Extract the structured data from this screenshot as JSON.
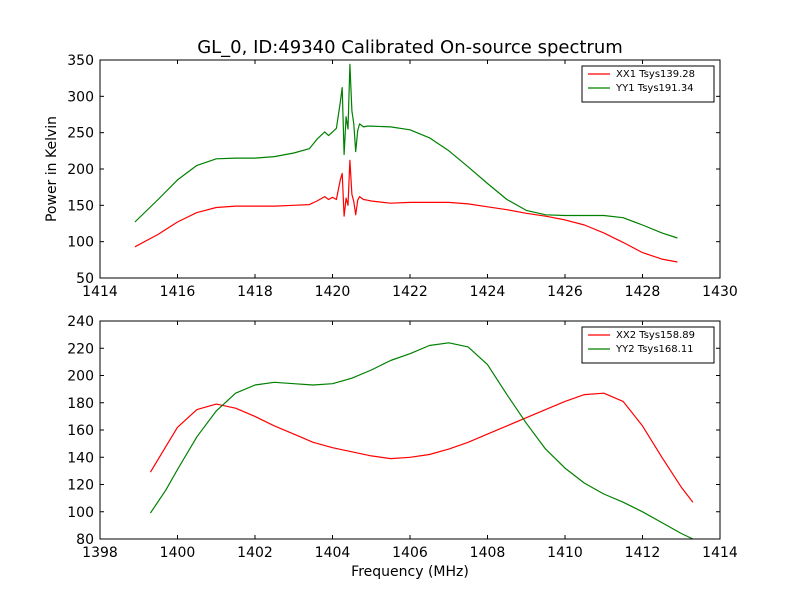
{
  "figure": {
    "title": "GL_0, ID:49340 Calibrated On-source spectrum",
    "background": "#ffffff"
  },
  "chart_data": [
    {
      "type": "line",
      "panel": "top",
      "xlim": [
        1414,
        1430
      ],
      "ylim": [
        50,
        350
      ],
      "xticks": [
        1414,
        1416,
        1418,
        1420,
        1422,
        1424,
        1426,
        1428,
        1430
      ],
      "yticks": [
        50,
        100,
        150,
        200,
        250,
        300,
        350
      ],
      "xlabel": "",
      "ylabel": "Power in Kelvin",
      "legend": "top-right",
      "grid": false,
      "series": [
        {
          "name": "XX1 Tsys139.28",
          "color": "#ff0000",
          "x": [
            1414.9,
            1415.5,
            1416.0,
            1416.5,
            1417.0,
            1417.5,
            1418.0,
            1418.5,
            1419.0,
            1419.4,
            1419.6,
            1419.8,
            1419.9,
            1420.0,
            1420.1,
            1420.2,
            1420.25,
            1420.3,
            1420.35,
            1420.4,
            1420.45,
            1420.5,
            1420.55,
            1420.6,
            1420.65,
            1420.7,
            1420.8,
            1420.9,
            1421.0,
            1421.5,
            1422.0,
            1422.5,
            1423.0,
            1423.5,
            1424.0,
            1424.5,
            1425.0,
            1425.5,
            1426.0,
            1426.5,
            1427.0,
            1427.5,
            1428.0,
            1428.5,
            1428.9
          ],
          "y": [
            93,
            110,
            127,
            140,
            147,
            149,
            149,
            149,
            150,
            151,
            156,
            162,
            158,
            161,
            158,
            185,
            194,
            135,
            160,
            150,
            212,
            165,
            155,
            137,
            157,
            162,
            158,
            157,
            156,
            153,
            154,
            154,
            154,
            152,
            148,
            144,
            139,
            135,
            130,
            123,
            112,
            99,
            85,
            76,
            72
          ]
        },
        {
          "name": "YY1 Tsys191.34",
          "color": "#008000",
          "x": [
            1414.9,
            1415.5,
            1416.0,
            1416.5,
            1417.0,
            1417.5,
            1418.0,
            1418.5,
            1419.0,
            1419.4,
            1419.6,
            1419.8,
            1419.9,
            1420.0,
            1420.1,
            1420.2,
            1420.25,
            1420.3,
            1420.35,
            1420.4,
            1420.45,
            1420.5,
            1420.55,
            1420.6,
            1420.65,
            1420.7,
            1420.8,
            1420.9,
            1421.0,
            1421.5,
            1422.0,
            1422.5,
            1423.0,
            1423.5,
            1424.0,
            1424.5,
            1425.0,
            1425.5,
            1426.0,
            1426.5,
            1427.0,
            1427.5,
            1428.0,
            1428.5,
            1428.9
          ],
          "y": [
            127,
            158,
            185,
            205,
            214,
            215,
            215,
            217,
            222,
            228,
            241,
            251,
            246,
            251,
            256,
            292,
            312,
            220,
            272,
            255,
            344,
            280,
            262,
            224,
            253,
            262,
            258,
            259,
            259,
            258,
            254,
            243,
            225,
            203,
            180,
            158,
            143,
            137,
            136,
            136,
            136,
            133,
            123,
            112,
            105
          ]
        }
      ]
    },
    {
      "type": "line",
      "panel": "bottom",
      "xlim": [
        1398,
        1414
      ],
      "ylim": [
        80,
        240
      ],
      "xticks": [
        1398,
        1400,
        1402,
        1404,
        1406,
        1408,
        1410,
        1412,
        1414
      ],
      "yticks": [
        80,
        100,
        120,
        140,
        160,
        180,
        200,
        220,
        240
      ],
      "xlabel": "Frequency (MHz)",
      "ylabel": "",
      "legend": "top-right",
      "grid": false,
      "series": [
        {
          "name": "XX2 Tsys158.89",
          "color": "#ff0000",
          "x": [
            1399.3,
            1399.7,
            1400.0,
            1400.5,
            1401.0,
            1401.5,
            1402.0,
            1402.5,
            1403.0,
            1403.5,
            1404.0,
            1404.5,
            1405.0,
            1405.5,
            1406.0,
            1406.5,
            1407.0,
            1407.5,
            1408.0,
            1408.5,
            1409.0,
            1409.5,
            1410.0,
            1410.5,
            1411.0,
            1411.5,
            1412.0,
            1412.5,
            1413.0,
            1413.3
          ],
          "y": [
            129,
            148,
            162,
            175,
            179,
            176,
            170,
            163,
            157,
            151,
            147,
            144,
            141,
            139,
            140,
            142,
            146,
            151,
            157,
            163,
            169,
            175,
            181,
            186,
            187,
            181,
            163,
            140,
            118,
            107
          ]
        },
        {
          "name": "YY2 Tsys168.11",
          "color": "#008000",
          "x": [
            1399.3,
            1399.7,
            1400.0,
            1400.5,
            1401.0,
            1401.5,
            1402.0,
            1402.5,
            1403.0,
            1403.5,
            1404.0,
            1404.5,
            1405.0,
            1405.5,
            1406.0,
            1406.5,
            1407.0,
            1407.5,
            1408.0,
            1408.5,
            1409.0,
            1409.5,
            1410.0,
            1410.5,
            1411.0,
            1411.5,
            1412.0,
            1412.5,
            1413.0,
            1413.3
          ],
          "y": [
            99,
            116,
            131,
            155,
            174,
            187,
            193,
            195,
            194,
            193,
            194,
            198,
            204,
            211,
            216,
            222,
            224,
            221,
            208,
            186,
            165,
            146,
            132,
            121,
            113,
            107,
            100,
            92,
            84,
            80
          ]
        }
      ]
    }
  ]
}
